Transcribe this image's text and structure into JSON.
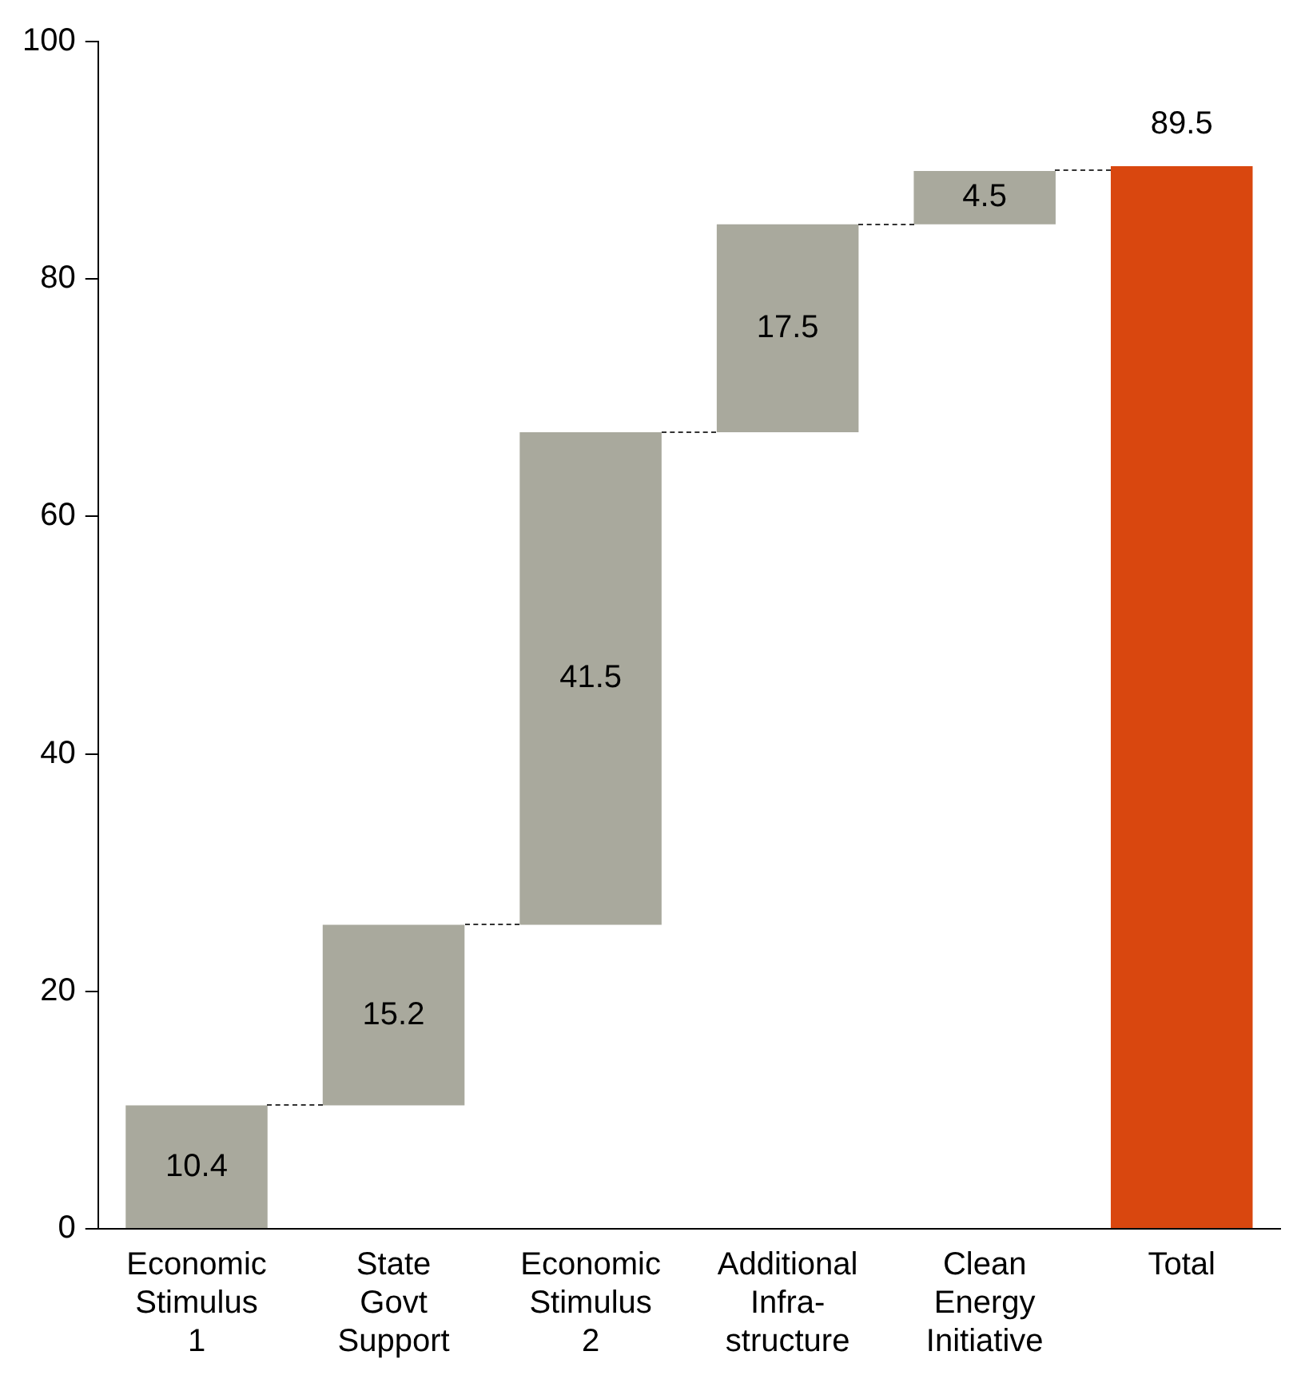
{
  "chart_data": {
    "type": "bar",
    "categories": [
      "Economic\nStimulus\n1",
      "State\nGovt\nSupport",
      "Economic\nStimulus\n2",
      "Additional\nInfra-\nstructure",
      "Clean\nEnergy\nInitiative",
      "Total"
    ],
    "values": [
      10.4,
      15.2,
      41.5,
      17.5,
      4.5,
      89.5
    ],
    "base": [
      0,
      10.4,
      25.6,
      67.1,
      84.6,
      0
    ],
    "colors": [
      "#a9a99d",
      "#a9a99d",
      "#a9a99d",
      "#a9a99d",
      "#a9a99d",
      "#d9470f"
    ],
    "ylim": [
      0,
      100
    ],
    "yticks": [
      0,
      20,
      40,
      60,
      80,
      100
    ],
    "data_labels": true,
    "grid": false,
    "legend": false
  }
}
